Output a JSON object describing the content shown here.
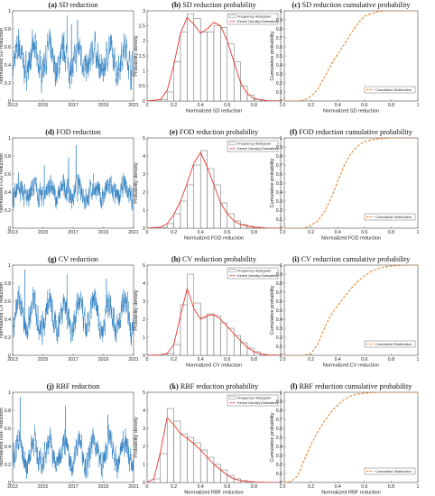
{
  "colors": {
    "ts": "#2f7fc1",
    "kde": "#e8362b",
    "cdf": "#e67e22",
    "hist_edge": "#555555"
  },
  "chart_data": [
    {
      "id": "a",
      "type": "line",
      "letter": "(a)",
      "title": "SD reduction",
      "xlabel": "",
      "ylabel": "Normalized SD reduction",
      "xlim": [
        2013,
        2021
      ],
      "ylim": [
        0,
        1
      ],
      "xticks": [
        "2013",
        "2015",
        "2017",
        "2019",
        "2021"
      ],
      "yticks": [
        "0",
        "0.2",
        "0.4",
        "0.6",
        "0.8",
        "1"
      ],
      "series_profile": {
        "mean": 0.46,
        "seasonal_amp": 0.12,
        "noise": 0.12,
        "spikes": [
          [
            2016.6,
            0.95
          ],
          [
            2016.9,
            0.85
          ],
          [
            2017.3,
            0.9
          ],
          [
            2013.4,
            0.8
          ]
        ]
      }
    },
    {
      "id": "b",
      "type": "bar",
      "letter": "(b)",
      "title": "SD reduction probability",
      "xlabel": "Normalized SD reduction",
      "ylabel": "Probability density",
      "xlim": [
        0,
        1
      ],
      "ylim": [
        0,
        3
      ],
      "xticks": [
        "0",
        "0.2",
        "0.4",
        "0.6",
        "0.8",
        "1"
      ],
      "yticks": [
        "0",
        "0.5",
        "1",
        "1.5",
        "2",
        "2.5",
        "3"
      ],
      "legend": [
        "Frequency Histogram",
        "Kernel Density Estimation"
      ],
      "legend_position": "top-right",
      "bin_width": 0.05,
      "bins": [
        0.1,
        0.15,
        0.2,
        0.25,
        0.3,
        0.35,
        0.4,
        0.45,
        0.5,
        0.55,
        0.6,
        0.65,
        0.7,
        0.75,
        0.8,
        0.85
      ],
      "hist": [
        0.05,
        0.3,
        1.3,
        2.3,
        2.9,
        2.75,
        2.3,
        2.3,
        2.5,
        2.45,
        1.9,
        1.3,
        0.5,
        0.2,
        0.05,
        0.02
      ],
      "kde_x": [
        0.0,
        0.1,
        0.15,
        0.2,
        0.25,
        0.3,
        0.35,
        0.4,
        0.45,
        0.5,
        0.55,
        0.6,
        0.65,
        0.7,
        0.75,
        0.8,
        0.9,
        1.0
      ],
      "kde_y": [
        0.0,
        0.05,
        0.35,
        1.2,
        2.25,
        2.78,
        2.55,
        2.25,
        2.4,
        2.62,
        2.5,
        2.0,
        1.3,
        0.6,
        0.25,
        0.08,
        0.01,
        0.0
      ]
    },
    {
      "id": "c",
      "type": "line",
      "letter": "(c)",
      "title": "SD reduction cumulative probability",
      "xlabel": "Normalized SD reduction",
      "ylabel": "Cumulative probability",
      "xlim": [
        0,
        1
      ],
      "ylim": [
        0,
        1
      ],
      "xticks": [
        "0",
        "0.2",
        "0.4",
        "0.6",
        "0.8",
        "1"
      ],
      "yticks": [
        "0",
        "0.1",
        "0.2",
        "0.3",
        "0.4",
        "0.5",
        "0.6",
        "0.7",
        "0.8",
        "0.9",
        "1"
      ],
      "legend": [
        "Cumulative Distribution"
      ],
      "legend_position": "bottom-right",
      "cdf_x": [
        0.0,
        0.1,
        0.15,
        0.2,
        0.25,
        0.3,
        0.35,
        0.4,
        0.45,
        0.5,
        0.55,
        0.6,
        0.65,
        0.7,
        0.75,
        0.8,
        0.9,
        1.0
      ],
      "cdf_y": [
        0.0,
        0.0,
        0.01,
        0.05,
        0.13,
        0.26,
        0.4,
        0.52,
        0.63,
        0.75,
        0.86,
        0.94,
        0.97,
        0.99,
        1.0,
        1.0,
        1.0,
        1.0
      ]
    },
    {
      "id": "d",
      "type": "line",
      "letter": "(d)",
      "title": "FOD reduction",
      "xlabel": "",
      "ylabel": "Normalized FOD reduction",
      "xlim": [
        2013,
        2021
      ],
      "ylim": [
        0,
        1
      ],
      "xticks": [
        "2013",
        "2015",
        "2017",
        "2019",
        "2021"
      ],
      "yticks": [
        "0",
        "0.2",
        "0.4",
        "0.6",
        "0.8",
        "1"
      ],
      "series_profile": {
        "mean": 0.4,
        "seasonal_amp": 0.06,
        "noise": 0.09,
        "spikes": [
          [
            2016.7,
            0.78
          ],
          [
            2017.2,
            0.92
          ],
          [
            2015.1,
            0.7
          ]
        ]
      }
    },
    {
      "id": "e",
      "type": "bar",
      "letter": "(e)",
      "title": "FOD reduction probability",
      "xlabel": "Normalized FOD reduction",
      "ylabel": "Probability density",
      "xlim": [
        0,
        1
      ],
      "ylim": [
        0,
        5
      ],
      "xticks": [
        "0",
        "0.2",
        "0.4",
        "0.6",
        "0.8",
        "1"
      ],
      "yticks": [
        "0",
        "1",
        "2",
        "3",
        "4",
        "5"
      ],
      "legend": [
        "Frequency Histogram",
        "Kernel Density Estimation"
      ],
      "legend_position": "top-right",
      "bin_width": 0.05,
      "bins": [
        0.1,
        0.15,
        0.2,
        0.25,
        0.3,
        0.35,
        0.4,
        0.45,
        0.5,
        0.55,
        0.6,
        0.65,
        0.7,
        0.75,
        0.8
      ],
      "hist": [
        0.05,
        0.25,
        0.8,
        1.5,
        2.4,
        3.5,
        4.3,
        3.3,
        2.4,
        1.4,
        0.8,
        0.4,
        0.2,
        0.1,
        0.05
      ],
      "kde_x": [
        0.0,
        0.1,
        0.15,
        0.2,
        0.25,
        0.3,
        0.35,
        0.4,
        0.45,
        0.5,
        0.55,
        0.6,
        0.65,
        0.7,
        0.8,
        0.9,
        1.0
      ],
      "kde_y": [
        0.0,
        0.05,
        0.25,
        0.75,
        1.5,
        2.5,
        3.6,
        4.2,
        3.4,
        2.4,
        1.4,
        0.8,
        0.4,
        0.2,
        0.05,
        0.01,
        0.0
      ]
    },
    {
      "id": "f",
      "type": "line",
      "letter": "(f)",
      "title": "FOD reduction cumulative probability",
      "xlabel": "Normalized FOD reduction",
      "ylabel": "Cumulative probability",
      "xlim": [
        0,
        1
      ],
      "ylim": [
        0,
        1
      ],
      "xticks": [
        "0",
        "0.2",
        "0.4",
        "0.6",
        "0.8",
        "1"
      ],
      "yticks": [
        "0",
        "0.1",
        "0.2",
        "0.3",
        "0.4",
        "0.5",
        "0.6",
        "0.7",
        "0.8",
        "0.9",
        "1"
      ],
      "legend": [
        "Cumulative Distribution"
      ],
      "legend_position": "bottom-right",
      "cdf_x": [
        0.0,
        0.15,
        0.2,
        0.25,
        0.3,
        0.35,
        0.4,
        0.45,
        0.5,
        0.55,
        0.6,
        0.65,
        0.7,
        0.8,
        0.9,
        1.0
      ],
      "cdf_y": [
        0.0,
        0.0,
        0.03,
        0.08,
        0.18,
        0.33,
        0.52,
        0.7,
        0.83,
        0.91,
        0.96,
        0.98,
        0.99,
        1.0,
        1.0,
        1.0
      ]
    },
    {
      "id": "g",
      "type": "line",
      "letter": "(g)",
      "title": "CV reduction",
      "xlabel": "",
      "ylabel": "Normalized CV reduction",
      "xlim": [
        2013,
        2021
      ],
      "ylim": [
        0,
        1
      ],
      "xticks": [
        "2013",
        "2015",
        "2017",
        "2019",
        "2021"
      ],
      "yticks": [
        "0",
        "0.2",
        "0.4",
        "0.6",
        "0.8",
        "1"
      ],
      "series_profile": {
        "mean": 0.44,
        "seasonal_amp": 0.15,
        "noise": 0.11,
        "spikes": [
          [
            2013.8,
            0.95
          ],
          [
            2016.6,
            0.9
          ],
          [
            2019.2,
            0.85
          ]
        ]
      }
    },
    {
      "id": "h",
      "type": "bar",
      "letter": "(h)",
      "title": "CV reduction probability",
      "xlabel": "Normalized CV reduction",
      "ylabel": "Probability density",
      "xlim": [
        0,
        1
      ],
      "ylim": [
        0,
        5
      ],
      "xticks": [
        "0",
        "0.2",
        "0.4",
        "0.6",
        "0.8",
        "1"
      ],
      "yticks": [
        "0",
        "1",
        "2",
        "3",
        "4",
        "5"
      ],
      "legend": [
        "Frequency Histogram",
        "Kernel Density Estimation"
      ],
      "legend_position": "top-right",
      "bin_width": 0.05,
      "bins": [
        0.15,
        0.2,
        0.25,
        0.3,
        0.35,
        0.4,
        0.45,
        0.5,
        0.55,
        0.6,
        0.65,
        0.7,
        0.75,
        0.8,
        0.85
      ],
      "hist": [
        0.1,
        0.6,
        2.8,
        4.5,
        2.9,
        2.1,
        2.3,
        2.2,
        1.8,
        1.5,
        1.1,
        0.7,
        0.4,
        0.2,
        0.05
      ],
      "kde_x": [
        0.0,
        0.1,
        0.15,
        0.2,
        0.25,
        0.3,
        0.35,
        0.4,
        0.45,
        0.5,
        0.55,
        0.6,
        0.65,
        0.7,
        0.75,
        0.8,
        0.85,
        0.9,
        1.0
      ],
      "kde_y": [
        0.0,
        0.02,
        0.1,
        0.6,
        2.2,
        3.7,
        2.6,
        2.0,
        2.2,
        2.25,
        2.0,
        1.6,
        1.2,
        0.8,
        0.45,
        0.2,
        0.08,
        0.02,
        0.0
      ]
    },
    {
      "id": "i",
      "type": "line",
      "letter": "(i)",
      "title": "CV reduction cumulative probability",
      "xlabel": "Normalized CV reduction",
      "ylabel": "Cumulative probability",
      "xlim": [
        0,
        1
      ],
      "ylim": [
        0,
        1
      ],
      "xticks": [
        "0",
        "0.2",
        "0.4",
        "0.6",
        "0.8",
        "1"
      ],
      "yticks": [
        "0",
        "0.1",
        "0.2",
        "0.3",
        "0.4",
        "0.5",
        "0.6",
        "0.7",
        "0.8",
        "0.9",
        "1"
      ],
      "legend": [
        "Cumulative Distribution"
      ],
      "legend_position": "bottom-right",
      "cdf_x": [
        0.0,
        0.15,
        0.2,
        0.25,
        0.3,
        0.35,
        0.4,
        0.45,
        0.5,
        0.55,
        0.6,
        0.65,
        0.7,
        0.75,
        0.8,
        0.9,
        1.0
      ],
      "cdf_y": [
        0.0,
        0.0,
        0.02,
        0.12,
        0.3,
        0.45,
        0.55,
        0.65,
        0.74,
        0.82,
        0.88,
        0.93,
        0.96,
        0.98,
        0.99,
        1.0,
        1.0
      ]
    },
    {
      "id": "j",
      "type": "line",
      "letter": "(j)",
      "title": "RBF reduction",
      "xlabel": "",
      "ylabel": "Normalized RBF reduction",
      "xlim": [
        2013,
        2021
      ],
      "ylim": [
        0,
        1
      ],
      "xticks": [
        "2013",
        "2015",
        "2017",
        "2019",
        "2021"
      ],
      "yticks": [
        "0",
        "0.2",
        "0.4",
        "0.6",
        "0.8",
        "1"
      ],
      "series_profile": {
        "mean": 0.33,
        "seasonal_amp": 0.14,
        "noise": 0.1,
        "spikes": [
          [
            2013.5,
            0.95
          ],
          [
            2016.5,
            0.85
          ],
          [
            2019.3,
            0.75
          ]
        ]
      }
    },
    {
      "id": "k",
      "type": "bar",
      "letter": "(k)",
      "title": "RBF reduction probability",
      "xlabel": "Normalized RBF reduction",
      "ylabel": "Probability density",
      "xlim": [
        0,
        1
      ],
      "ylim": [
        0,
        5
      ],
      "xticks": [
        "0",
        "0.2",
        "0.4",
        "0.6",
        "0.8",
        "1"
      ],
      "yticks": [
        "0",
        "1",
        "2",
        "3",
        "4",
        "5"
      ],
      "legend": [
        "Frequency Histogram",
        "Kernel Density Estimation"
      ],
      "legend_position": "top-right",
      "bin_width": 0.05,
      "bins": [
        0.05,
        0.1,
        0.15,
        0.2,
        0.25,
        0.3,
        0.35,
        0.4,
        0.45,
        0.5,
        0.55,
        0.6,
        0.65,
        0.7,
        0.75
      ],
      "hist": [
        0.2,
        1.6,
        4.1,
        3.4,
        2.7,
        2.5,
        2.2,
        1.8,
        1.4,
        1.0,
        0.7,
        0.4,
        0.2,
        0.1,
        0.05
      ],
      "kde_x": [
        0.0,
        0.05,
        0.1,
        0.15,
        0.2,
        0.25,
        0.3,
        0.35,
        0.4,
        0.45,
        0.5,
        0.55,
        0.6,
        0.65,
        0.7,
        0.8,
        0.9,
        1.0
      ],
      "kde_y": [
        0.0,
        0.2,
        1.7,
        3.6,
        3.2,
        2.7,
        2.45,
        2.15,
        1.8,
        1.4,
        1.0,
        0.7,
        0.4,
        0.2,
        0.1,
        0.02,
        0.0,
        0.0
      ]
    },
    {
      "id": "l",
      "type": "line",
      "letter": "(l)",
      "title": "RBF reduction cumulative probability",
      "xlabel": "Normalized RBF reduction",
      "ylabel": "Cumulative probability",
      "xlim": [
        0,
        1
      ],
      "ylim": [
        0,
        1
      ],
      "xticks": [
        "0",
        "0.2",
        "0.4",
        "0.6",
        "0.8",
        "1"
      ],
      "yticks": [
        "0",
        "0.1",
        "0.2",
        "0.3",
        "0.4",
        "0.5",
        "0.6",
        "0.7",
        "0.8",
        "0.9",
        "1"
      ],
      "legend": [
        "Cumulative Distribution"
      ],
      "legend_position": "bottom-right",
      "cdf_x": [
        0.0,
        0.05,
        0.1,
        0.15,
        0.2,
        0.25,
        0.3,
        0.35,
        0.4,
        0.45,
        0.5,
        0.55,
        0.6,
        0.7,
        0.8,
        0.9,
        1.0
      ],
      "cdf_y": [
        0.0,
        0.01,
        0.07,
        0.25,
        0.42,
        0.56,
        0.68,
        0.78,
        0.86,
        0.92,
        0.96,
        0.98,
        0.99,
        1.0,
        1.0,
        1.0,
        1.0
      ]
    }
  ]
}
